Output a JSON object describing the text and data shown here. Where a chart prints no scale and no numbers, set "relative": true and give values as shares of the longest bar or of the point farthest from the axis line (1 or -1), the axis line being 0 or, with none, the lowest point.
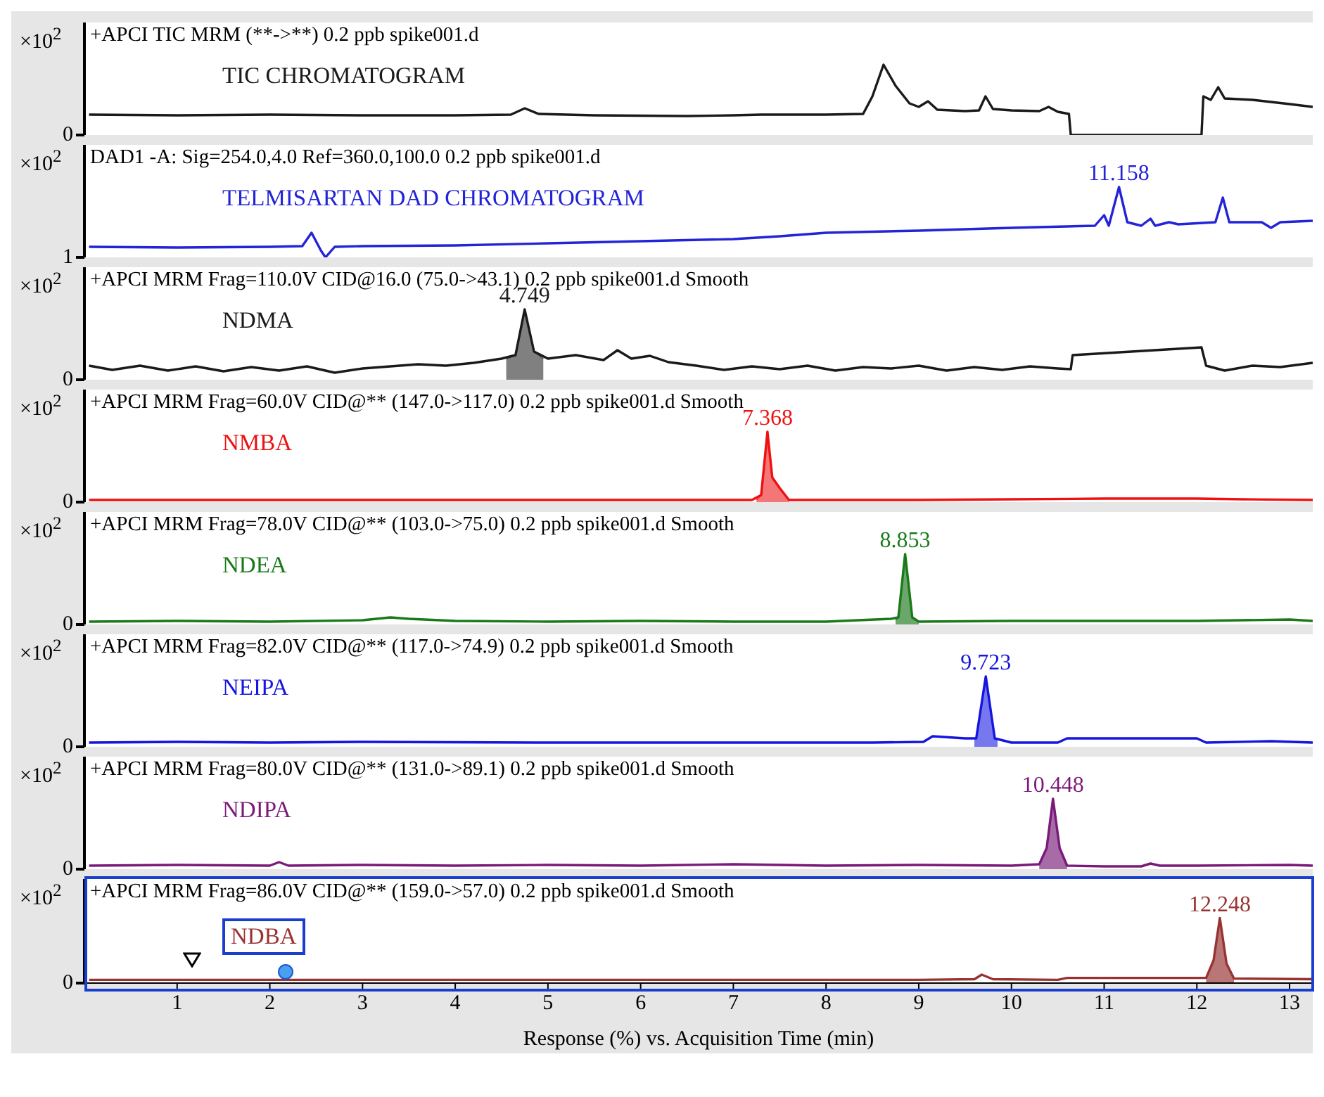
{
  "chart_data": [
    {
      "type": "line",
      "title": "+APCI TIC MRM (**->**) 0.2 ppb spike001.d",
      "ylabel": "×10$^{2}$",
      "relative": true,
      "xlim": [
        0,
        13.25
      ],
      "xticks": [
        1,
        2,
        3,
        4,
        5,
        6,
        7,
        8,
        9,
        10,
        11,
        12,
        13
      ],
      "tick_labels": "y",
      "annotations": [
        "0",
        "TIC CHROMATOGRAM"
      ],
      "series": [
        {
          "color": "#1a1a1a",
          "x": [
            0.05,
            1,
            2,
            3,
            4,
            4.6,
            4.75,
            4.9,
            5.5,
            6.5,
            7.0,
            7.3,
            8.0,
            8.4,
            8.5,
            8.62,
            8.75,
            8.9,
            9.0,
            9.1,
            9.2,
            9.5,
            9.65,
            9.72,
            9.8,
            10.0,
            10.3,
            10.4,
            10.5,
            10.62,
            10.64,
            12.05,
            12.07,
            12.15,
            12.23,
            12.3,
            12.6,
            13.0,
            13.25
          ],
          "values": [
            0.29,
            0.28,
            0.29,
            0.28,
            0.28,
            0.29,
            0.38,
            0.3,
            0.28,
            0.27,
            0.28,
            0.29,
            0.29,
            0.3,
            0.55,
            1,
            0.7,
            0.45,
            0.4,
            0.48,
            0.36,
            0.34,
            0.35,
            0.55,
            0.37,
            0.35,
            0.34,
            0.4,
            0.33,
            0.3,
            0,
            0,
            0.55,
            0.5,
            0.68,
            0.52,
            0.5,
            0.44,
            0.4
          ]
        }
      ]
    },
    {
      "type": "line",
      "title": "DAD1 -A: Sig=254.0,4.0 Ref=360.0,100.0 0.2 ppb spike001.d",
      "ylabel": "×10$^{2}$",
      "relative": true,
      "xlim": [
        0,
        13.25
      ],
      "xticks": [
        1,
        2,
        3,
        4,
        5,
        6,
        7,
        8,
        9,
        10,
        11,
        12,
        13
      ],
      "tick_labels": "y",
      "annotations": [
        "1",
        "TELMISARTAN DAD CHROMATOGRAM",
        {
          "text": "11.158",
          "x": 11.158,
          "y": 1
        }
      ],
      "series": [
        {
          "color": "#2323d8",
          "x": [
            0.05,
            1,
            2,
            2.35,
            2.45,
            2.55,
            2.6,
            2.7,
            3.0,
            4,
            5,
            6,
            7,
            7.5,
            8,
            9,
            10,
            10.9,
            11.0,
            11.05,
            11.16,
            11.25,
            11.4,
            11.5,
            11.55,
            11.7,
            11.8,
            12.2,
            12.28,
            12.35,
            12.7,
            12.8,
            12.9,
            13.25
          ],
          "values": [
            0.15,
            0.14,
            0.15,
            0.16,
            0.35,
            0.1,
            0,
            0.15,
            0.16,
            0.17,
            0.2,
            0.23,
            0.26,
            0.3,
            0.35,
            0.38,
            0.42,
            0.45,
            0.6,
            0.45,
            1,
            0.5,
            0.45,
            0.55,
            0.45,
            0.5,
            0.47,
            0.5,
            0.85,
            0.5,
            0.5,
            0.42,
            0.5,
            0.52
          ]
        }
      ]
    },
    {
      "type": "line",
      "title": "+APCI MRM Frag=110.0V CID@16.0 (75.0->43.1) 0.2 ppb spike001.d Smooth",
      "ylabel": "×10$^{2}$",
      "relative": true,
      "xlim": [
        0,
        13.25
      ],
      "xticks": [
        1,
        2,
        3,
        4,
        5,
        6,
        7,
        8,
        9,
        10,
        11,
        12,
        13
      ],
      "tick_labels": "y",
      "annotations": [
        "0",
        "NDMA",
        {
          "text": "4.749",
          "x": 4.749,
          "y": 1
        }
      ],
      "series": [
        {
          "type": "area",
          "color": "#555555",
          "x": [
            4.55,
            4.65,
            4.749,
            4.85,
            4.95
          ],
          "values": [
            0.3,
            0.35,
            1,
            0.4,
            0.3
          ]
        },
        {
          "color": "#1a1a1a",
          "x": [
            0.05,
            0.3,
            0.6,
            0.9,
            1.2,
            1.5,
            1.8,
            2.1,
            2.4,
            2.7,
            3.0,
            3.3,
            3.6,
            3.9,
            4.2,
            4.5,
            4.65,
            4.749,
            4.85,
            5.0,
            5.3,
            5.6,
            5.75,
            5.9,
            6.1,
            6.3,
            6.6,
            6.9,
            7.2,
            7.5,
            7.8,
            8.1,
            8.4,
            8.7,
            9.0,
            9.3,
            9.6,
            9.9,
            10.2,
            10.5,
            10.64,
            10.66,
            12.05,
            12.1,
            12.3,
            12.6,
            12.9,
            13.25
          ],
          "values": [
            0.2,
            0.14,
            0.2,
            0.13,
            0.19,
            0.12,
            0.18,
            0.13,
            0.19,
            0.1,
            0.16,
            0.19,
            0.22,
            0.2,
            0.24,
            0.3,
            0.35,
            1,
            0.4,
            0.3,
            0.35,
            0.28,
            0.42,
            0.3,
            0.34,
            0.25,
            0.2,
            0.14,
            0.19,
            0.15,
            0.2,
            0.13,
            0.18,
            0.16,
            0.2,
            0.13,
            0.18,
            0.14,
            0.19,
            0.16,
            0.15,
            0.35,
            0.46,
            0.2,
            0.13,
            0.2,
            0.18,
            0.24
          ]
        }
      ]
    },
    {
      "type": "line",
      "title": "+APCI MRM Frag=60.0V CID@** (147.0->117.0) 0.2 ppb spike001.d Smooth",
      "ylabel": "×10$^{2}$",
      "relative": true,
      "xlim": [
        0,
        13.25
      ],
      "xticks": [
        1,
        2,
        3,
        4,
        5,
        6,
        7,
        8,
        9,
        10,
        11,
        12,
        13
      ],
      "tick_labels": "y",
      "annotations": [
        "0",
        "NMBA",
        {
          "text": "7.368",
          "x": 7.368,
          "y": 1
        }
      ],
      "series": [
        {
          "type": "area",
          "color": "#f04848",
          "x": [
            7.25,
            7.3,
            7.368,
            7.42,
            7.5,
            7.6
          ],
          "values": [
            0.03,
            0.1,
            1,
            0.35,
            0.2,
            0.03
          ]
        },
        {
          "color": "#ee1111",
          "x": [
            0.05,
            1,
            2,
            3,
            4,
            5,
            6,
            7,
            7.2,
            7.3,
            7.368,
            7.42,
            7.5,
            7.6,
            8,
            9,
            10,
            11,
            12,
            12.5,
            13.25
          ],
          "values": [
            0.03,
            0.03,
            0.03,
            0.03,
            0.03,
            0.03,
            0.03,
            0.03,
            0.03,
            0.1,
            1,
            0.35,
            0.2,
            0.03,
            0.03,
            0.03,
            0.04,
            0.05,
            0.05,
            0.04,
            0.03
          ]
        }
      ]
    },
    {
      "type": "line",
      "title": "+APCI MRM Frag=78.0V CID@** (103.0->75.0) 0.2 ppb spike001.d Smooth",
      "ylabel": "×10$^{2}$",
      "relative": true,
      "xlim": [
        0,
        13.25
      ],
      "xticks": [
        1,
        2,
        3,
        4,
        5,
        6,
        7,
        8,
        9,
        10,
        11,
        12,
        13
      ],
      "tick_labels": "y",
      "annotations": [
        "0",
        "NDEA",
        {
          "text": "8.853",
          "x": 8.853,
          "y": 1
        }
      ],
      "series": [
        {
          "type": "area",
          "color": "#3a8a3a",
          "x": [
            8.75,
            8.78,
            8.853,
            8.93,
            9.0
          ],
          "values": [
            0.06,
            0.1,
            1,
            0.1,
            0.04
          ]
        },
        {
          "color": "#1a7a1a",
          "x": [
            0.05,
            1,
            2,
            3,
            3.3,
            3.5,
            4,
            5,
            6,
            7,
            8,
            8.7,
            8.78,
            8.853,
            8.93,
            9.0,
            10,
            11,
            12,
            13,
            13.25
          ],
          "values": [
            0.04,
            0.05,
            0.04,
            0.06,
            0.1,
            0.08,
            0.05,
            0.04,
            0.05,
            0.04,
            0.04,
            0.08,
            0.1,
            1,
            0.1,
            0.04,
            0.05,
            0.05,
            0.05,
            0.07,
            0.05
          ]
        }
      ]
    },
    {
      "type": "line",
      "title": "+APCI MRM Frag=82.0V CID@** (117.0->74.9) 0.2 ppb spike001.d Smooth",
      "ylabel": "×10$^{2}$",
      "relative": true,
      "xlim": [
        0,
        13.25
      ],
      "xticks": [
        1,
        2,
        3,
        4,
        5,
        6,
        7,
        8,
        9,
        10,
        11,
        12,
        13
      ],
      "tick_labels": "y",
      "annotations": [
        "0",
        "NEIPA",
        {
          "text": "9.723",
          "x": 9.723,
          "y": 1
        }
      ],
      "series": [
        {
          "type": "area",
          "color": "#4a4ae8",
          "x": [
            9.6,
            9.62,
            9.723,
            9.82,
            9.85
          ],
          "values": [
            0.12,
            0.12,
            1,
            0.12,
            0.1
          ]
        },
        {
          "color": "#1515e0",
          "x": [
            0.05,
            1,
            2,
            3,
            5,
            7,
            8.5,
            9.05,
            9.15,
            9.5,
            9.62,
            9.723,
            9.82,
            10.0,
            10.5,
            10.6,
            12.0,
            12.1,
            12.8,
            13.25
          ],
          "values": [
            0.06,
            0.07,
            0.06,
            0.07,
            0.06,
            0.06,
            0.06,
            0.07,
            0.15,
            0.12,
            0.12,
            1,
            0.12,
            0.06,
            0.06,
            0.12,
            0.12,
            0.06,
            0.08,
            0.06
          ]
        }
      ]
    },
    {
      "type": "line",
      "title": "+APCI MRM Frag=80.0V CID@** (131.0->89.1) 0.2 ppb spike001.d Smooth",
      "ylabel": "×10$^{2}$",
      "relative": true,
      "xlim": [
        0,
        13.25
      ],
      "xticks": [
        1,
        2,
        3,
        4,
        5,
        6,
        7,
        8,
        9,
        10,
        11,
        12,
        13
      ],
      "tick_labels": "y",
      "annotations": [
        "0",
        "NDIPA",
        {
          "text": "10.448",
          "x": 10.448,
          "y": 1
        }
      ],
      "series": [
        {
          "type": "area",
          "color": "#8a3a8a",
          "x": [
            10.3,
            10.38,
            10.448,
            10.52,
            10.6
          ],
          "values": [
            0.07,
            0.3,
            1,
            0.3,
            0.05
          ]
        },
        {
          "color": "#7a1a7a",
          "x": [
            0.05,
            1,
            2,
            2.1,
            2.2,
            3,
            4,
            5,
            6,
            7,
            8,
            9,
            10,
            10.3,
            10.38,
            10.448,
            10.52,
            10.6,
            11,
            11.4,
            11.5,
            11.6,
            12,
            13,
            13.25
          ],
          "values": [
            0.05,
            0.06,
            0.05,
            0.1,
            0.05,
            0.06,
            0.05,
            0.06,
            0.05,
            0.07,
            0.05,
            0.06,
            0.05,
            0.07,
            0.3,
            1,
            0.3,
            0.05,
            0.04,
            0.04,
            0.08,
            0.05,
            0.05,
            0.06,
            0.05
          ]
        }
      ]
    },
    {
      "type": "line",
      "title": "+APCI MRM Frag=86.0V CID@** (159.0->57.0) 0.2 ppb spike001.d Smooth",
      "ylabel": "×10$^{2}$",
      "xlabel": "Response (%) vs. Acquisition Time (min)",
      "relative": true,
      "xlim": [
        0,
        13.25
      ],
      "xticks": [
        1,
        2,
        3,
        4,
        5,
        6,
        7,
        8,
        9,
        10,
        11,
        12,
        13
      ],
      "annotations": [
        "0",
        "NDBA",
        {
          "text": "12.248",
          "x": 12.248,
          "y": 1
        }
      ],
      "series": [
        {
          "type": "area",
          "color": "#a04848",
          "x": [
            12.1,
            12.18,
            12.248,
            12.32,
            12.4
          ],
          "values": [
            0.08,
            0.35,
            1,
            0.3,
            0.07
          ]
        },
        {
          "color": "#993333",
          "x": [
            0.05,
            1,
            2,
            3,
            5,
            7,
            9,
            9.6,
            9.68,
            9.8,
            10.5,
            10.6,
            12.1,
            12.18,
            12.248,
            12.32,
            12.4,
            13.25
          ],
          "values": [
            0.05,
            0.05,
            0.05,
            0.05,
            0.05,
            0.05,
            0.05,
            0.06,
            0.13,
            0.06,
            0.05,
            0.08,
            0.08,
            0.35,
            1,
            0.3,
            0.07,
            0.06
          ]
        }
      ]
    }
  ]
}
